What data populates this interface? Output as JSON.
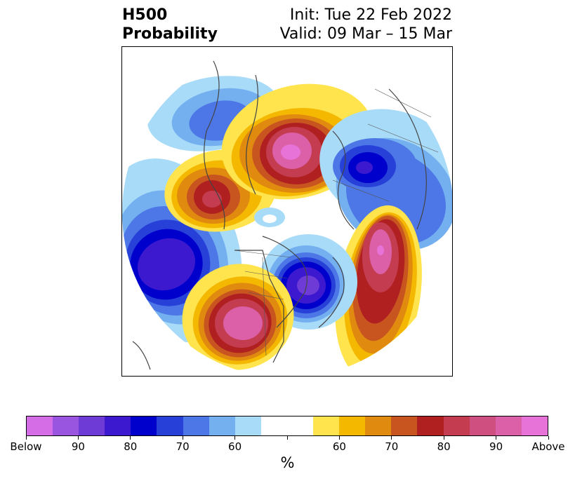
{
  "header": {
    "title_line1": "H500",
    "title_line2": "Probability",
    "init_text": "Init: Tue 22 Feb 2022",
    "valid_text": "Valid: 09 Mar – 15 Mar"
  },
  "map": {
    "projection": "north-polar-stereographic",
    "field": "500 hPa height anomaly probability"
  },
  "colorbar": {
    "colors": [
      "#d56ee6",
      "#9a55e0",
      "#6f3bd6",
      "#3c19cf",
      "#0000cc",
      "#2640d8",
      "#4d77e6",
      "#74b0f0",
      "#a8dbf8",
      "#ffffff",
      "#ffffff",
      "#ffe44d",
      "#f5b800",
      "#e08a10",
      "#c85520",
      "#b02020",
      "#c43c50",
      "#cf5080",
      "#db60a8",
      "#e873d8"
    ],
    "tick_labels": [
      "Below",
      "90",
      "80",
      "70",
      "60",
      "",
      "60",
      "70",
      "80",
      "90",
      "Above"
    ],
    "unit": "%"
  }
}
